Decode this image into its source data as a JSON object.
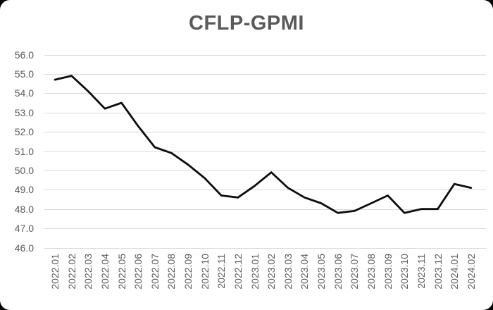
{
  "panel": {
    "surface_color": "#ffffff",
    "backdrop_color": "#000000"
  },
  "chart_data": {
    "type": "line",
    "title": "CFLP-GPMI",
    "series_name": "CFLP-GPMI",
    "categories": [
      "2022.01",
      "2022.02",
      "2022.03",
      "2022.04",
      "2022.05",
      "2022.06",
      "2022.07",
      "2022.08",
      "2022.09",
      "2022.10",
      "2022.11",
      "2022.12",
      "2023.01",
      "2023.02",
      "2023.03",
      "2023.04",
      "2023.05",
      "2023.06",
      "2023.07",
      "2023.08",
      "2023.09",
      "2023.10",
      "2023.11",
      "2023.12",
      "2024.01",
      "2024.02"
    ],
    "values": [
      54.7,
      54.9,
      54.1,
      53.2,
      53.5,
      52.3,
      51.2,
      50.9,
      50.3,
      49.6,
      48.7,
      48.6,
      49.2,
      49.9,
      49.1,
      48.6,
      48.3,
      47.8,
      47.9,
      48.3,
      48.7,
      47.8,
      48.0,
      48.0,
      49.3,
      49.1
    ],
    "ylim": [
      46.0,
      56.0
    ],
    "ytick_step": 1.0,
    "ytick_labels": [
      "56.0",
      "55.0",
      "54.0",
      "53.0",
      "52.0",
      "51.0",
      "50.0",
      "49.0",
      "48.0",
      "47.0",
      "46.0"
    ],
    "xlabel": "",
    "ylabel": "",
    "grid": "horizontal",
    "legend_position": "none",
    "line_color": "#0d0d0d",
    "grid_color": "#d9d9d9",
    "tick_label_color": "#595959",
    "title_color": "#595959"
  }
}
